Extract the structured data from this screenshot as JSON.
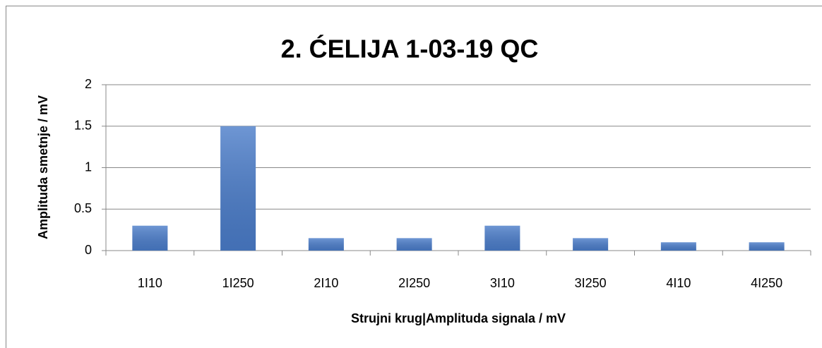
{
  "chart_data": {
    "type": "bar",
    "title": "2. ĆELIJA 1-03-19 QC",
    "x_label": "Strujni krug|Amplituda signala / mV",
    "y_label": "Amplituda smetnje / mV",
    "categories": [
      "1I10",
      "1I250",
      "2I10",
      "2I250",
      "3I10",
      "3I250",
      "4I10",
      "4I250"
    ],
    "values": [
      0.3,
      1.5,
      0.15,
      0.15,
      0.3,
      0.15,
      0.1,
      0.1
    ],
    "color": "#4a7cc9",
    "ylim": [
      0,
      2
    ],
    "yticks": [
      0,
      0.5,
      1,
      1.5,
      2
    ],
    "grid": true
  }
}
